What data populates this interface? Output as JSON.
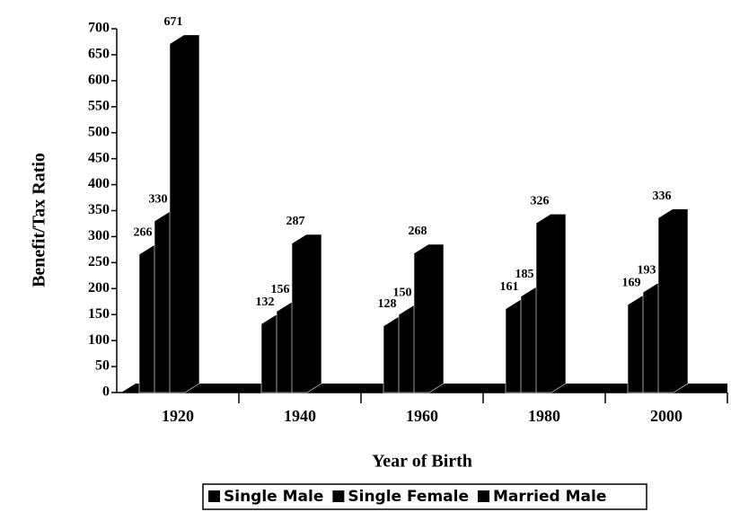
{
  "chart_data": {
    "type": "bar3d",
    "xlabel": "Year of Birth",
    "ylabel": "Benefit/Tax Ratio",
    "categories": [
      "1920",
      "1940",
      "1960",
      "1980",
      "2000"
    ],
    "series": [
      {
        "name": "Single Male",
        "color": "#000000",
        "values": [
          266,
          132,
          128,
          161,
          169
        ]
      },
      {
        "name": "Single Female",
        "color": "#000000",
        "values": [
          330,
          156,
          150,
          185,
          193
        ]
      },
      {
        "name": "Married Male",
        "color": "#000000",
        "values": [
          671,
          287,
          268,
          326,
          336
        ]
      }
    ],
    "ylim": [
      0,
      700
    ],
    "yticks": [
      0,
      50,
      100,
      150,
      200,
      250,
      300,
      350,
      400,
      450,
      500,
      550,
      600,
      650,
      700
    ]
  }
}
